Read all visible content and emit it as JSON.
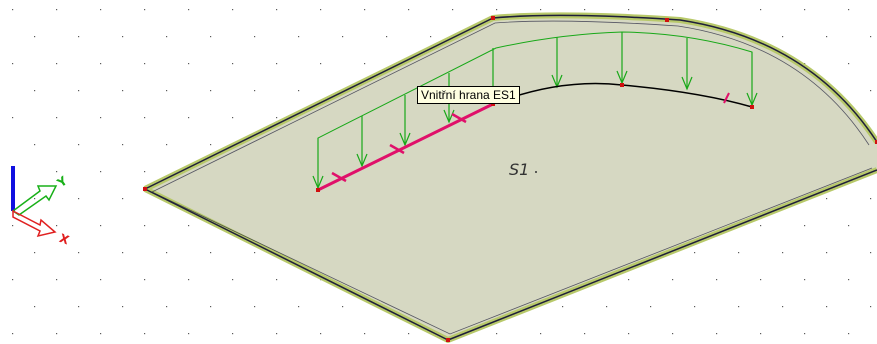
{
  "viewport": {
    "background": "#ffffff",
    "grid_dot_color": "#5a5a5a"
  },
  "slab": {
    "label": "S1",
    "fill_color": "#d6d8c2",
    "edge_inner_color": "#1e1e3a",
    "edge_outer_color": "#b8c96a"
  },
  "tooltip": {
    "text": "Vnitřní hrana ES1"
  },
  "inner_edge": {
    "straight_color": "#e0106a",
    "curve_color": "#000000"
  },
  "load": {
    "color": "#18a818"
  },
  "node_color": "#d01010",
  "axes": {
    "x_color": "#e02020",
    "y_color": "#18b018",
    "z_color": "#1010e0",
    "x_label": "X",
    "y_label": "Y"
  }
}
